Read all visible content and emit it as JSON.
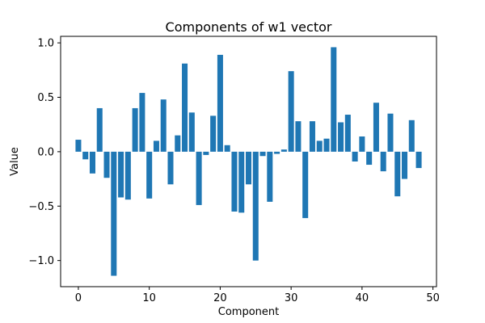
{
  "chart_data": {
    "type": "bar",
    "title": "Components of w1 vector",
    "xlabel": "Component",
    "ylabel": "Value",
    "color": "#1f77b4",
    "xlim": [
      -2.5,
      50.5
    ],
    "ylim": [
      -1.24,
      1.06
    ],
    "xticks": [
      0,
      10,
      20,
      30,
      40,
      50
    ],
    "xtick_labels": [
      "0",
      "10",
      "20",
      "30",
      "40",
      "50"
    ],
    "yticks": [
      -1.0,
      -0.5,
      0.0,
      0.5,
      1.0
    ],
    "ytick_labels": [
      "−1.0",
      "−0.5",
      "0.0",
      "0.5",
      "1.0"
    ],
    "bar_width": 0.8,
    "grid": false,
    "legend": "none",
    "categories": [
      0,
      1,
      2,
      3,
      4,
      5,
      6,
      7,
      8,
      9,
      10,
      11,
      12,
      13,
      14,
      15,
      16,
      17,
      18,
      19,
      20,
      21,
      22,
      23,
      24,
      25,
      26,
      27,
      28,
      29,
      30,
      31,
      32,
      33,
      34,
      35,
      36,
      37,
      38,
      39,
      40,
      41,
      42,
      43,
      44,
      45,
      46,
      47,
      48
    ],
    "values": [
      0.11,
      -0.07,
      -0.2,
      0.4,
      -0.24,
      -1.14,
      -0.42,
      -0.44,
      0.4,
      0.54,
      -0.43,
      0.1,
      0.48,
      -0.3,
      0.15,
      0.81,
      0.36,
      -0.49,
      -0.03,
      0.33,
      0.89,
      0.06,
      -0.55,
      -0.56,
      -0.3,
      -1.0,
      -0.04,
      -0.46,
      -0.02,
      0.02,
      0.74,
      0.28,
      -0.61,
      0.28,
      0.1,
      0.12,
      0.96,
      0.27,
      0.34,
      -0.09,
      0.14,
      -0.12,
      0.45,
      -0.18,
      0.35,
      -0.41,
      -0.25,
      0.29,
      -0.15
    ]
  }
}
